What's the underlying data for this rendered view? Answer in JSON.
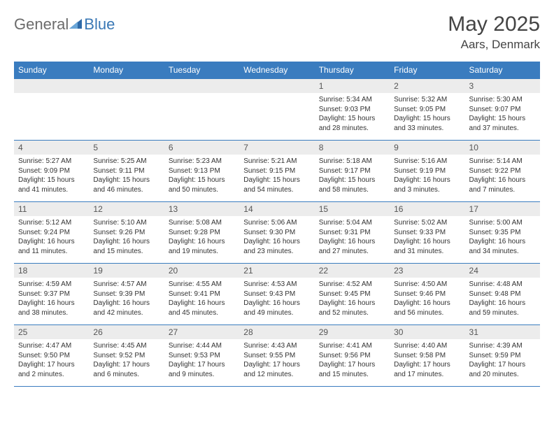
{
  "brand": {
    "part1": "General",
    "part2": "Blue"
  },
  "title": {
    "month_year": "May 2025",
    "location": "Aars, Denmark"
  },
  "colors": {
    "header_bg": "#3a7cbf",
    "header_text": "#ffffff",
    "daynum_bg": "#ececec",
    "border": "#3a7cbf",
    "logo_gray": "#6b6b6b",
    "logo_blue": "#3a78b5"
  },
  "day_headers": [
    "Sunday",
    "Monday",
    "Tuesday",
    "Wednesday",
    "Thursday",
    "Friday",
    "Saturday"
  ],
  "weeks": [
    [
      {
        "n": "",
        "lines": []
      },
      {
        "n": "",
        "lines": []
      },
      {
        "n": "",
        "lines": []
      },
      {
        "n": "",
        "lines": []
      },
      {
        "n": "1",
        "lines": [
          "Sunrise: 5:34 AM",
          "Sunset: 9:03 PM",
          "Daylight: 15 hours",
          "and 28 minutes."
        ]
      },
      {
        "n": "2",
        "lines": [
          "Sunrise: 5:32 AM",
          "Sunset: 9:05 PM",
          "Daylight: 15 hours",
          "and 33 minutes."
        ]
      },
      {
        "n": "3",
        "lines": [
          "Sunrise: 5:30 AM",
          "Sunset: 9:07 PM",
          "Daylight: 15 hours",
          "and 37 minutes."
        ]
      }
    ],
    [
      {
        "n": "4",
        "lines": [
          "Sunrise: 5:27 AM",
          "Sunset: 9:09 PM",
          "Daylight: 15 hours",
          "and 41 minutes."
        ]
      },
      {
        "n": "5",
        "lines": [
          "Sunrise: 5:25 AM",
          "Sunset: 9:11 PM",
          "Daylight: 15 hours",
          "and 46 minutes."
        ]
      },
      {
        "n": "6",
        "lines": [
          "Sunrise: 5:23 AM",
          "Sunset: 9:13 PM",
          "Daylight: 15 hours",
          "and 50 minutes."
        ]
      },
      {
        "n": "7",
        "lines": [
          "Sunrise: 5:21 AM",
          "Sunset: 9:15 PM",
          "Daylight: 15 hours",
          "and 54 minutes."
        ]
      },
      {
        "n": "8",
        "lines": [
          "Sunrise: 5:18 AM",
          "Sunset: 9:17 PM",
          "Daylight: 15 hours",
          "and 58 minutes."
        ]
      },
      {
        "n": "9",
        "lines": [
          "Sunrise: 5:16 AM",
          "Sunset: 9:19 PM",
          "Daylight: 16 hours",
          "and 3 minutes."
        ]
      },
      {
        "n": "10",
        "lines": [
          "Sunrise: 5:14 AM",
          "Sunset: 9:22 PM",
          "Daylight: 16 hours",
          "and 7 minutes."
        ]
      }
    ],
    [
      {
        "n": "11",
        "lines": [
          "Sunrise: 5:12 AM",
          "Sunset: 9:24 PM",
          "Daylight: 16 hours",
          "and 11 minutes."
        ]
      },
      {
        "n": "12",
        "lines": [
          "Sunrise: 5:10 AM",
          "Sunset: 9:26 PM",
          "Daylight: 16 hours",
          "and 15 minutes."
        ]
      },
      {
        "n": "13",
        "lines": [
          "Sunrise: 5:08 AM",
          "Sunset: 9:28 PM",
          "Daylight: 16 hours",
          "and 19 minutes."
        ]
      },
      {
        "n": "14",
        "lines": [
          "Sunrise: 5:06 AM",
          "Sunset: 9:30 PM",
          "Daylight: 16 hours",
          "and 23 minutes."
        ]
      },
      {
        "n": "15",
        "lines": [
          "Sunrise: 5:04 AM",
          "Sunset: 9:31 PM",
          "Daylight: 16 hours",
          "and 27 minutes."
        ]
      },
      {
        "n": "16",
        "lines": [
          "Sunrise: 5:02 AM",
          "Sunset: 9:33 PM",
          "Daylight: 16 hours",
          "and 31 minutes."
        ]
      },
      {
        "n": "17",
        "lines": [
          "Sunrise: 5:00 AM",
          "Sunset: 9:35 PM",
          "Daylight: 16 hours",
          "and 34 minutes."
        ]
      }
    ],
    [
      {
        "n": "18",
        "lines": [
          "Sunrise: 4:59 AM",
          "Sunset: 9:37 PM",
          "Daylight: 16 hours",
          "and 38 minutes."
        ]
      },
      {
        "n": "19",
        "lines": [
          "Sunrise: 4:57 AM",
          "Sunset: 9:39 PM",
          "Daylight: 16 hours",
          "and 42 minutes."
        ]
      },
      {
        "n": "20",
        "lines": [
          "Sunrise: 4:55 AM",
          "Sunset: 9:41 PM",
          "Daylight: 16 hours",
          "and 45 minutes."
        ]
      },
      {
        "n": "21",
        "lines": [
          "Sunrise: 4:53 AM",
          "Sunset: 9:43 PM",
          "Daylight: 16 hours",
          "and 49 minutes."
        ]
      },
      {
        "n": "22",
        "lines": [
          "Sunrise: 4:52 AM",
          "Sunset: 9:45 PM",
          "Daylight: 16 hours",
          "and 52 minutes."
        ]
      },
      {
        "n": "23",
        "lines": [
          "Sunrise: 4:50 AM",
          "Sunset: 9:46 PM",
          "Daylight: 16 hours",
          "and 56 minutes."
        ]
      },
      {
        "n": "24",
        "lines": [
          "Sunrise: 4:48 AM",
          "Sunset: 9:48 PM",
          "Daylight: 16 hours",
          "and 59 minutes."
        ]
      }
    ],
    [
      {
        "n": "25",
        "lines": [
          "Sunrise: 4:47 AM",
          "Sunset: 9:50 PM",
          "Daylight: 17 hours",
          "and 2 minutes."
        ]
      },
      {
        "n": "26",
        "lines": [
          "Sunrise: 4:45 AM",
          "Sunset: 9:52 PM",
          "Daylight: 17 hours",
          "and 6 minutes."
        ]
      },
      {
        "n": "27",
        "lines": [
          "Sunrise: 4:44 AM",
          "Sunset: 9:53 PM",
          "Daylight: 17 hours",
          "and 9 minutes."
        ]
      },
      {
        "n": "28",
        "lines": [
          "Sunrise: 4:43 AM",
          "Sunset: 9:55 PM",
          "Daylight: 17 hours",
          "and 12 minutes."
        ]
      },
      {
        "n": "29",
        "lines": [
          "Sunrise: 4:41 AM",
          "Sunset: 9:56 PM",
          "Daylight: 17 hours",
          "and 15 minutes."
        ]
      },
      {
        "n": "30",
        "lines": [
          "Sunrise: 4:40 AM",
          "Sunset: 9:58 PM",
          "Daylight: 17 hours",
          "and 17 minutes."
        ]
      },
      {
        "n": "31",
        "lines": [
          "Sunrise: 4:39 AM",
          "Sunset: 9:59 PM",
          "Daylight: 17 hours",
          "and 20 minutes."
        ]
      }
    ]
  ]
}
